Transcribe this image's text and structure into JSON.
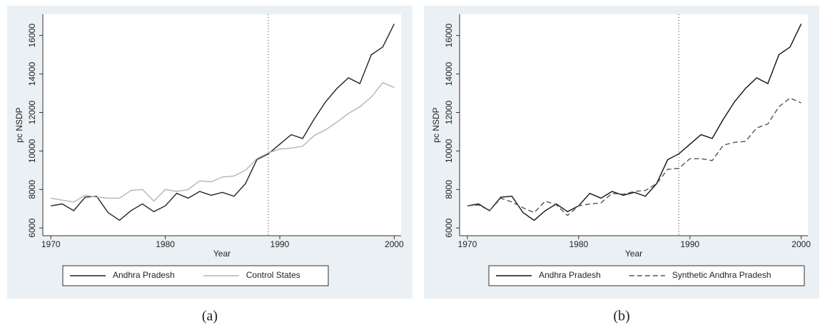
{
  "chart_data": [
    {
      "type": "line",
      "caption": "(a)",
      "xlabel": "Year",
      "ylabel": "pc NSDP",
      "x": [
        1970,
        1971,
        1972,
        1973,
        1974,
        1975,
        1976,
        1977,
        1978,
        1979,
        1980,
        1981,
        1982,
        1983,
        1984,
        1985,
        1986,
        1987,
        1988,
        1989,
        1990,
        1991,
        1992,
        1993,
        1994,
        1995,
        1996,
        1997,
        1998,
        1999,
        2000
      ],
      "series": [
        {
          "name": "Andhra Pradesh",
          "color": "#222222",
          "style": "solid",
          "values": [
            7150,
            7250,
            6900,
            7600,
            7650,
            6800,
            6400,
            6900,
            7250,
            6850,
            7150,
            7800,
            7550,
            7900,
            7700,
            7850,
            7650,
            8300,
            9550,
            9850,
            10350,
            10850,
            10650,
            11650,
            12550,
            13250,
            13800,
            13500,
            15000,
            15400,
            16600
          ]
        },
        {
          "name": "Control States",
          "color": "#b4b4b4",
          "style": "solid",
          "values": [
            7550,
            7450,
            7350,
            7700,
            7600,
            7550,
            7550,
            7950,
            8000,
            7400,
            8000,
            7900,
            8000,
            8450,
            8400,
            8650,
            8700,
            9000,
            9600,
            9900,
            10100,
            10150,
            10250,
            10800,
            11100,
            11500,
            11950,
            12300,
            12800,
            13550,
            13300
          ]
        }
      ],
      "xlim": [
        1969.3,
        2000.6
      ],
      "xticks": [
        1970,
        1980,
        1990,
        2000
      ],
      "ylim": [
        5600,
        17100
      ],
      "yticks": [
        6000,
        8000,
        10000,
        12000,
        14000,
        16000
      ],
      "vline": 1989,
      "legend": "bottom"
    },
    {
      "type": "line",
      "caption": "(b)",
      "xlabel": "Year",
      "ylabel": "pc NSDP",
      "x": [
        1970,
        1971,
        1972,
        1973,
        1974,
        1975,
        1976,
        1977,
        1978,
        1979,
        1980,
        1981,
        1982,
        1983,
        1984,
        1985,
        1986,
        1987,
        1988,
        1989,
        1990,
        1991,
        1992,
        1993,
        1994,
        1995,
        1996,
        1997,
        1998,
        1999,
        2000
      ],
      "series": [
        {
          "name": "Andhra Pradesh",
          "color": "#111111",
          "style": "solid",
          "values": [
            7150,
            7250,
            6900,
            7600,
            7650,
            6800,
            6400,
            6900,
            7250,
            6850,
            7150,
            7800,
            7550,
            7900,
            7700,
            7850,
            7650,
            8300,
            9550,
            9850,
            10350,
            10850,
            10650,
            11650,
            12550,
            13250,
            13800,
            13500,
            15000,
            15400,
            16600
          ]
        },
        {
          "name": "Synthetic Andhra Pradesh",
          "color": "#555555",
          "style": "dashed",
          "values": [
            7150,
            7200,
            6900,
            7550,
            7350,
            7050,
            6800,
            7400,
            7200,
            6650,
            7150,
            7250,
            7300,
            7800,
            7750,
            7900,
            7950,
            8300,
            9050,
            9100,
            9600,
            9600,
            9500,
            10300,
            10450,
            10500,
            11200,
            11400,
            12300,
            12750,
            12500
          ]
        }
      ],
      "xlim": [
        1969.3,
        2000.6
      ],
      "xticks": [
        1970,
        1980,
        1990,
        2000
      ],
      "ylim": [
        5600,
        17100
      ],
      "yticks": [
        6000,
        8000,
        10000,
        12000,
        14000,
        16000
      ],
      "vline": 1989,
      "legend": "bottom"
    }
  ]
}
